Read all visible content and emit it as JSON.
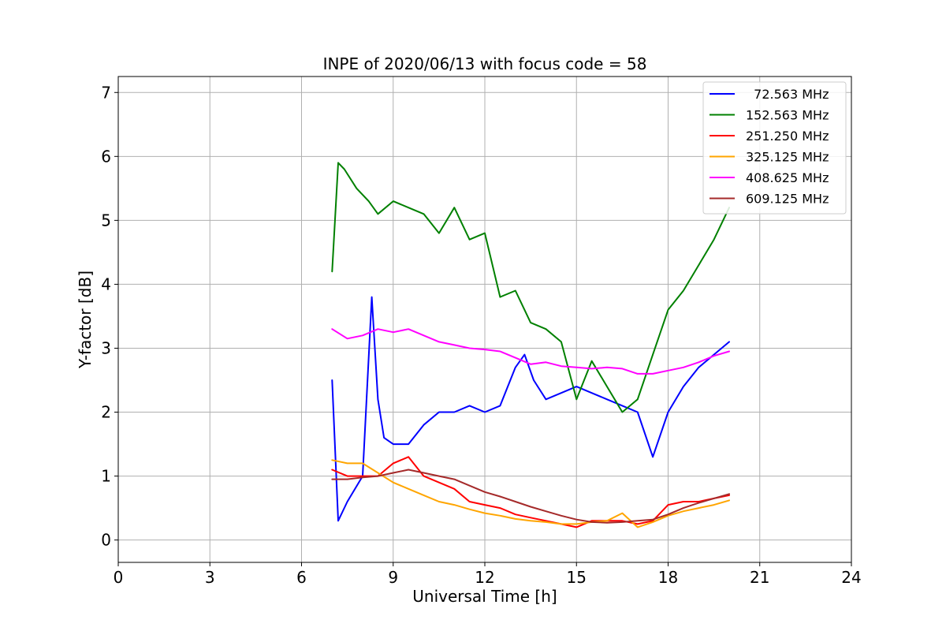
{
  "chart_data": {
    "type": "line",
    "title": "INPE of 2020/06/13 with focus code = 58",
    "xlabel": "Universal Time [h]",
    "ylabel": "Y-factor [dB]",
    "xlim": [
      0,
      24
    ],
    "ylim": [
      -0.35,
      7.25
    ],
    "xticks": [
      0,
      3,
      6,
      9,
      12,
      15,
      18,
      21,
      24
    ],
    "yticks": [
      0,
      1,
      2,
      3,
      4,
      5,
      6,
      7
    ],
    "xtick_labels": [
      "0",
      "3",
      "6",
      "9",
      "12",
      "15",
      "18",
      "21",
      "24"
    ],
    "ytick_labels": [
      "0",
      "1",
      "2",
      "3",
      "4",
      "5",
      "6",
      "7"
    ],
    "grid": true,
    "legend_position": "top-right",
    "series": [
      {
        "name": "  72.563 MHz",
        "color": "#0000ff",
        "x": [
          7.0,
          7.2,
          7.5,
          8.0,
          8.3,
          8.5,
          8.7,
          9.0,
          9.5,
          10.0,
          10.5,
          11.0,
          11.5,
          12.0,
          12.5,
          13.0,
          13.3,
          13.6,
          14.0,
          14.5,
          15.0,
          15.5,
          16.0,
          16.5,
          17.0,
          17.5,
          18.0,
          18.5,
          19.0,
          19.5,
          20.0
        ],
        "y": [
          2.5,
          0.3,
          0.6,
          1.0,
          3.8,
          2.2,
          1.6,
          1.5,
          1.5,
          1.8,
          2.0,
          2.0,
          2.1,
          2.0,
          2.1,
          2.7,
          2.9,
          2.5,
          2.2,
          2.3,
          2.4,
          2.3,
          2.2,
          2.1,
          2.0,
          1.3,
          2.0,
          2.4,
          2.7,
          2.9,
          3.1
        ]
      },
      {
        "name": "152.563 MHz",
        "color": "#008000",
        "x": [
          7.0,
          7.2,
          7.4,
          7.8,
          8.2,
          8.5,
          9.0,
          9.5,
          10.0,
          10.5,
          11.0,
          11.5,
          12.0,
          12.5,
          13.0,
          13.5,
          14.0,
          14.5,
          15.0,
          15.5,
          16.0,
          16.5,
          17.0,
          17.5,
          18.0,
          18.5,
          19.0,
          19.5,
          20.0
        ],
        "y": [
          4.2,
          5.9,
          5.8,
          5.5,
          5.3,
          5.1,
          5.3,
          5.2,
          5.1,
          4.8,
          5.2,
          4.7,
          4.8,
          3.8,
          3.9,
          3.4,
          3.3,
          3.1,
          2.2,
          2.8,
          2.4,
          2.0,
          2.2,
          2.9,
          3.6,
          3.9,
          4.3,
          4.7,
          5.2
        ]
      },
      {
        "name": "251.250 MHz",
        "color": "#ff0000",
        "x": [
          7.0,
          7.5,
          8.0,
          8.5,
          9.0,
          9.5,
          10.0,
          10.5,
          11.0,
          11.5,
          12.0,
          12.5,
          13.0,
          13.5,
          14.0,
          14.5,
          15.0,
          15.5,
          16.0,
          16.5,
          17.0,
          17.5,
          18.0,
          18.5,
          19.0,
          19.5,
          20.0
        ],
        "y": [
          1.1,
          1.0,
          1.0,
          1.0,
          1.2,
          1.3,
          1.0,
          0.9,
          0.8,
          0.6,
          0.55,
          0.5,
          0.4,
          0.35,
          0.3,
          0.25,
          0.2,
          0.3,
          0.3,
          0.3,
          0.25,
          0.3,
          0.55,
          0.6,
          0.6,
          0.65,
          0.7
        ]
      },
      {
        "name": "325.125 MHz",
        "color": "#ffa500",
        "x": [
          7.0,
          7.5,
          8.0,
          8.5,
          9.0,
          9.5,
          10.0,
          10.5,
          11.0,
          11.5,
          12.0,
          12.5,
          13.0,
          13.5,
          14.0,
          14.5,
          15.0,
          15.5,
          16.0,
          16.5,
          17.0,
          17.5,
          18.0,
          18.5,
          19.0,
          19.5,
          20.0
        ],
        "y": [
          1.25,
          1.2,
          1.2,
          1.05,
          0.9,
          0.8,
          0.7,
          0.6,
          0.55,
          0.48,
          0.42,
          0.38,
          0.33,
          0.3,
          0.28,
          0.25,
          0.25,
          0.28,
          0.3,
          0.42,
          0.2,
          0.28,
          0.38,
          0.45,
          0.5,
          0.55,
          0.62
        ]
      },
      {
        "name": "408.625 MHz",
        "color": "#ff00ff",
        "x": [
          7.0,
          7.5,
          8.0,
          8.5,
          9.0,
          9.5,
          10.0,
          10.5,
          11.0,
          11.5,
          12.0,
          12.5,
          13.0,
          13.5,
          14.0,
          14.5,
          15.0,
          15.5,
          16.0,
          16.5,
          17.0,
          17.5,
          18.0,
          18.5,
          19.0,
          19.5,
          20.0
        ],
        "y": [
          3.3,
          3.15,
          3.2,
          3.3,
          3.25,
          3.3,
          3.2,
          3.1,
          3.05,
          3.0,
          2.98,
          2.95,
          2.85,
          2.75,
          2.78,
          2.72,
          2.7,
          2.68,
          2.7,
          2.68,
          2.6,
          2.6,
          2.65,
          2.7,
          2.78,
          2.88,
          2.95
        ]
      },
      {
        "name": "609.125 MHz",
        "color": "#a52a2a",
        "x": [
          7.0,
          7.5,
          8.0,
          8.5,
          9.0,
          9.5,
          10.0,
          10.5,
          11.0,
          11.5,
          12.0,
          12.5,
          13.0,
          13.5,
          14.0,
          14.5,
          15.0,
          15.5,
          16.0,
          16.5,
          17.0,
          17.5,
          18.0,
          18.5,
          19.0,
          19.5,
          20.0
        ],
        "y": [
          0.95,
          0.95,
          0.98,
          1.0,
          1.05,
          1.1,
          1.05,
          1.0,
          0.95,
          0.85,
          0.75,
          0.68,
          0.6,
          0.52,
          0.45,
          0.38,
          0.32,
          0.28,
          0.27,
          0.28,
          0.3,
          0.32,
          0.4,
          0.5,
          0.58,
          0.65,
          0.72
        ]
      }
    ]
  }
}
